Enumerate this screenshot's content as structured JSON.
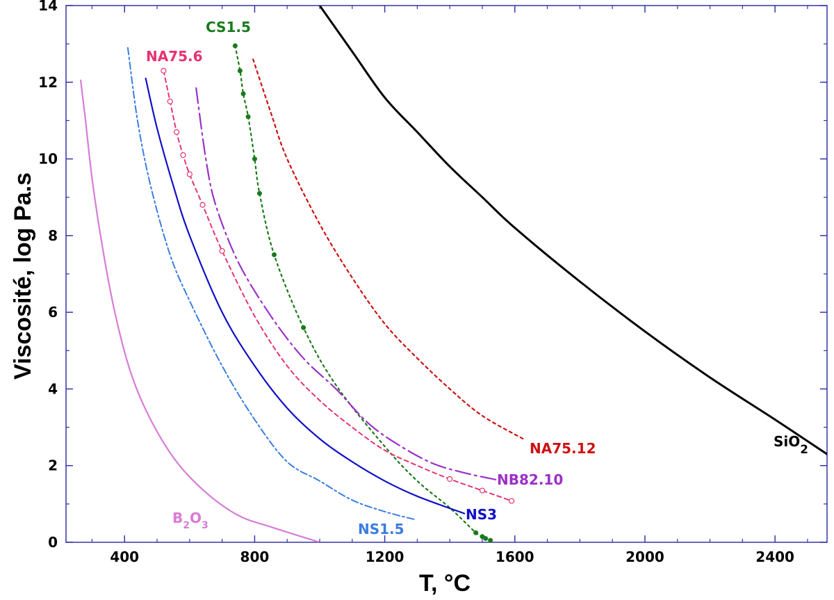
{
  "chart_data": {
    "type": "line",
    "title": "",
    "xlabel": "T, °C",
    "ylabel": "Viscosité, log Pa.s",
    "xlim": [
      220,
      2560
    ],
    "ylim": [
      0,
      14
    ],
    "xticks": [
      400,
      800,
      1200,
      1600,
      2000,
      2400
    ],
    "yticks": [
      0,
      2,
      4,
      6,
      8,
      10,
      12,
      14
    ],
    "grid": false,
    "legend": "labels next to curves",
    "series": [
      {
        "name": "SiO",
        "sub": "2",
        "color": "#000000",
        "x": [
          1000,
          1100,
          1200,
          1300,
          1400,
          1500,
          1600,
          1800,
          2000,
          2200,
          2400,
          2560
        ],
        "y": [
          14.0,
          12.8,
          11.6,
          10.7,
          9.8,
          9.0,
          8.2,
          6.8,
          5.5,
          4.3,
          3.2,
          2.3
        ]
      },
      {
        "name": "CS1.5",
        "color": "#1a7a1a",
        "x": [
          740,
          755,
          765,
          780,
          800,
          815,
          860,
          950,
          1050,
          1200,
          1300,
          1400,
          1480,
          1500,
          1510,
          1525
        ],
        "y": [
          12.95,
          12.3,
          11.7,
          11.1,
          10.0,
          9.1,
          7.5,
          5.6,
          4.1,
          2.5,
          1.6,
          0.9,
          0.25,
          0.15,
          0.1,
          0.05
        ]
      },
      {
        "name": "NA75.12",
        "color": "#cc1111",
        "x": [
          795,
          850,
          900,
          1000,
          1100,
          1200,
          1300,
          1400,
          1500,
          1625
        ],
        "y": [
          12.6,
          11.2,
          10.0,
          8.3,
          6.9,
          5.7,
          4.8,
          4.0,
          3.3,
          2.7
        ]
      },
      {
        "name": "NA75.6",
        "color": "#e8336e",
        "x": [
          520,
          540,
          560,
          580,
          600,
          640,
          700,
          800,
          900,
          1000,
          1100,
          1200,
          1300,
          1400,
          1500,
          1590
        ],
        "y": [
          12.3,
          11.5,
          10.7,
          10.1,
          9.6,
          8.8,
          7.6,
          5.9,
          4.6,
          3.7,
          3.0,
          2.4,
          2.0,
          1.65,
          1.35,
          1.08
        ]
      },
      {
        "name": "NB82.10",
        "color": "#9b30c8",
        "x": [
          620,
          650,
          680,
          750,
          850,
          950,
          1050,
          1150,
          1250,
          1350,
          1450,
          1550
        ],
        "y": [
          11.85,
          10.0,
          8.8,
          7.3,
          5.9,
          4.8,
          4.0,
          3.1,
          2.5,
          2.05,
          1.8,
          1.62
        ]
      },
      {
        "name": "NS3",
        "color": "#1010c8",
        "x": [
          465,
          500,
          550,
          600,
          700,
          800,
          900,
          1000,
          1100,
          1200,
          1300,
          1445
        ],
        "y": [
          12.1,
          10.8,
          9.3,
          8.0,
          6.0,
          4.6,
          3.5,
          2.7,
          2.1,
          1.6,
          1.2,
          0.75
        ]
      },
      {
        "name": "NS1.5",
        "color": "#3a7de0",
        "x": [
          410,
          440,
          480,
          540,
          600,
          700,
          800,
          900,
          1000,
          1100,
          1200,
          1290
        ],
        "y": [
          12.9,
          11.0,
          9.3,
          7.5,
          6.3,
          4.6,
          3.2,
          2.1,
          1.6,
          1.1,
          0.8,
          0.6
        ]
      },
      {
        "name": "B",
        "sub": "2",
        "name2": "O",
        "sub2": "3",
        "color": "#d77cd7",
        "x": [
          265,
          280,
          300,
          330,
          370,
          420,
          480,
          560,
          650,
          750,
          850,
          1000
        ],
        "y": [
          12.05,
          11.0,
          9.5,
          7.8,
          6.0,
          4.4,
          3.2,
          2.1,
          1.3,
          0.7,
          0.4,
          0.0
        ]
      }
    ]
  }
}
